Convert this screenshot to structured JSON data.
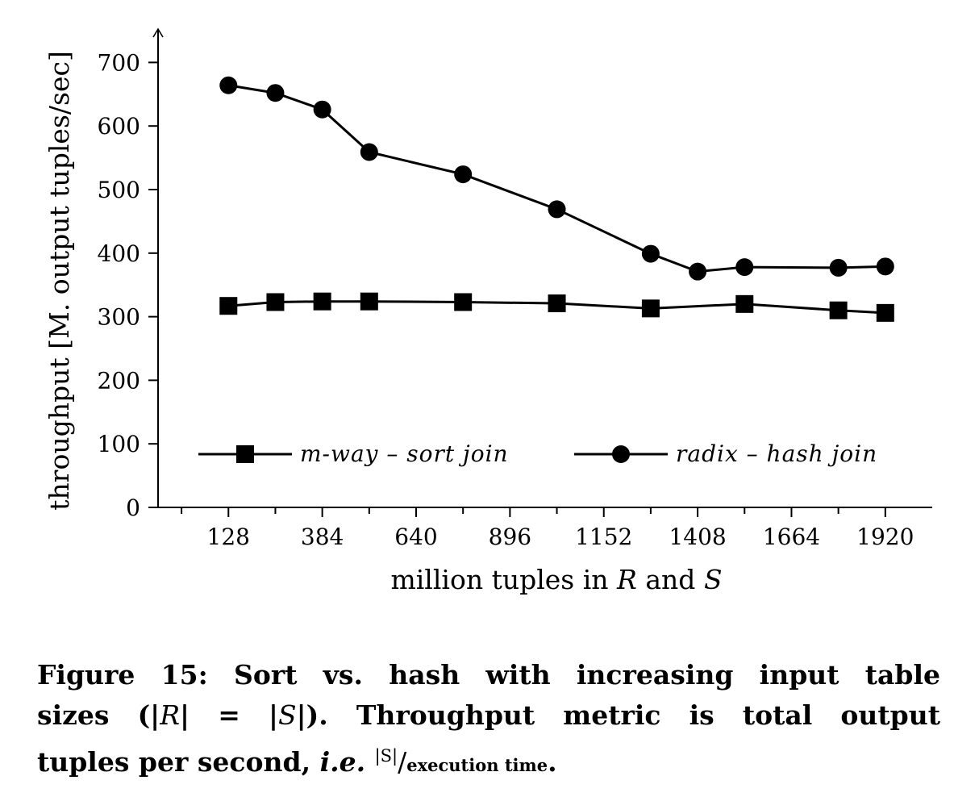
{
  "chart_data": {
    "type": "line",
    "x": [
      128,
      256,
      384,
      512,
      768,
      1024,
      1280,
      1536,
      1792,
      1920
    ],
    "x_radix": [
      128,
      256,
      384,
      512,
      768,
      1024,
      1280,
      1408,
      1536,
      1792,
      1920
    ],
    "series": [
      {
        "name": "m-way – sort join",
        "marker": "square",
        "x": [
          128,
          256,
          384,
          512,
          768,
          1024,
          1280,
          1536,
          1792,
          1920
        ],
        "values": [
          317,
          323,
          324,
          324,
          323,
          321,
          313,
          320,
          310,
          306
        ]
      },
      {
        "name": "radix – hash join",
        "marker": "circle",
        "x": [
          128,
          256,
          384,
          512,
          768,
          1024,
          1280,
          1408,
          1536,
          1792,
          1920
        ],
        "values": [
          664,
          652,
          626,
          559,
          524,
          469,
          399,
          371,
          378,
          377,
          379
        ]
      }
    ],
    "xlabel_parts": [
      "million tuples in ",
      "R",
      " and ",
      "S"
    ],
    "ylabel": "throughput [M. output tuples/sec]",
    "xticks": [
      128,
      384,
      640,
      896,
      1152,
      1408,
      1664,
      1920
    ],
    "yticks": [
      0,
      100,
      200,
      300,
      400,
      500,
      600,
      700
    ],
    "xlim": [
      -64,
      2048
    ],
    "ylim": [
      0,
      750
    ],
    "grid": false,
    "legend_position": "bottom",
    "line_color": "#000000"
  },
  "caption": {
    "line1": "Figure 15: Sort vs. hash with increasing input table",
    "line2_a": "sizes (|",
    "line2_b": "R",
    "line2_c": "| = |",
    "line2_d": "S",
    "line2_e": "|).  Throughput metric is total output",
    "line3_a": "tuples per second, ",
    "line3_b": "i.e.",
    "line3_c": "|S|",
    "line3_d": "/",
    "line3_e": "execution time",
    "line3_f": "."
  }
}
